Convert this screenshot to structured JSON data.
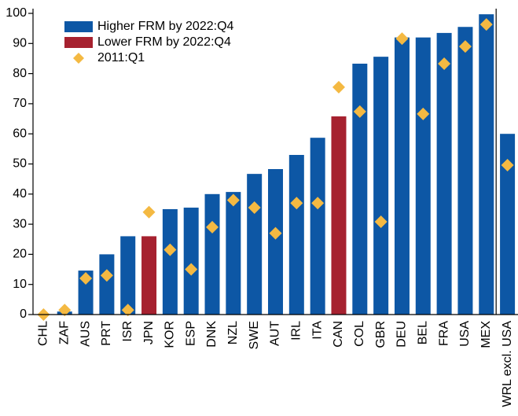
{
  "chart_data": {
    "type": "bar",
    "categories": [
      "CHL",
      "ZAF",
      "AUS",
      "PRT",
      "ISR",
      "JPN",
      "KOR",
      "ESP",
      "DNK",
      "NZL",
      "SWE",
      "AUT",
      "IRL",
      "ITA",
      "CAN",
      "COL",
      "GBR",
      "DEU",
      "BEL",
      "FRA",
      "USA",
      "MEX",
      "WRL excl. USA"
    ],
    "series": [
      {
        "name": "Higher FRM by 2022:Q4",
        "color": "#0d57a5",
        "marker": "bar",
        "values": [
          0,
          1,
          14.6,
          20,
          26,
          null,
          35,
          35.5,
          40,
          40.7,
          46.7,
          48.3,
          53,
          58.7,
          null,
          83.3,
          85.6,
          92,
          92,
          93.5,
          95.5,
          99.7,
          60
        ]
      },
      {
        "name": "Lower FRM by 2022:Q4",
        "color": "#a6212f",
        "marker": "bar",
        "values": [
          null,
          null,
          null,
          null,
          null,
          26,
          null,
          null,
          null,
          null,
          null,
          null,
          null,
          null,
          65.8,
          null,
          null,
          null,
          null,
          null,
          null,
          null,
          null
        ]
      },
      {
        "name": "2011:Q1",
        "color": "#f4b942",
        "marker": "diamond",
        "values": [
          0,
          1.5,
          12,
          13,
          1.5,
          34,
          21.5,
          15,
          29,
          38,
          35.5,
          27,
          37,
          37,
          75.5,
          67.4,
          30.8,
          91.6,
          66.6,
          83.3,
          89,
          96.3,
          49.6
        ]
      }
    ],
    "ylim": [
      0,
      100
    ],
    "yticks": [
      0,
      10,
      20,
      30,
      40,
      50,
      60,
      70,
      80,
      90,
      100
    ]
  }
}
